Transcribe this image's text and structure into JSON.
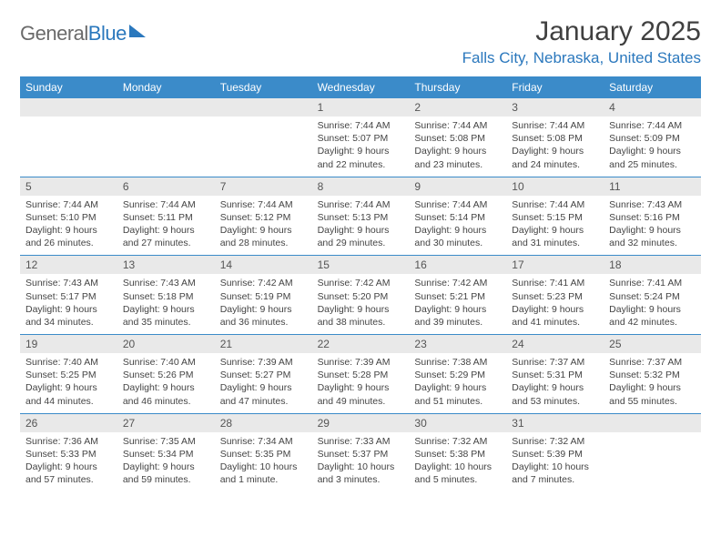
{
  "brand": {
    "part1": "General",
    "part2": "Blue"
  },
  "title": "January 2025",
  "location": "Falls City, Nebraska, United States",
  "colors": {
    "header_bg": "#3b8bc9",
    "header_text": "#ffffff",
    "daynum_bg": "#e9e9e9",
    "rule": "#3b8bc9",
    "brand_blue": "#2b78bd",
    "brand_gray": "#6a6a6a",
    "body_text": "#444444"
  },
  "weekdays": [
    "Sunday",
    "Monday",
    "Tuesday",
    "Wednesday",
    "Thursday",
    "Friday",
    "Saturday"
  ],
  "weeks": [
    [
      {
        "n": "",
        "sunrise": "",
        "sunset": "",
        "daylight": ""
      },
      {
        "n": "",
        "sunrise": "",
        "sunset": "",
        "daylight": ""
      },
      {
        "n": "",
        "sunrise": "",
        "sunset": "",
        "daylight": ""
      },
      {
        "n": "1",
        "sunrise": "Sunrise: 7:44 AM",
        "sunset": "Sunset: 5:07 PM",
        "daylight": "Daylight: 9 hours and 22 minutes."
      },
      {
        "n": "2",
        "sunrise": "Sunrise: 7:44 AM",
        "sunset": "Sunset: 5:08 PM",
        "daylight": "Daylight: 9 hours and 23 minutes."
      },
      {
        "n": "3",
        "sunrise": "Sunrise: 7:44 AM",
        "sunset": "Sunset: 5:08 PM",
        "daylight": "Daylight: 9 hours and 24 minutes."
      },
      {
        "n": "4",
        "sunrise": "Sunrise: 7:44 AM",
        "sunset": "Sunset: 5:09 PM",
        "daylight": "Daylight: 9 hours and 25 minutes."
      }
    ],
    [
      {
        "n": "5",
        "sunrise": "Sunrise: 7:44 AM",
        "sunset": "Sunset: 5:10 PM",
        "daylight": "Daylight: 9 hours and 26 minutes."
      },
      {
        "n": "6",
        "sunrise": "Sunrise: 7:44 AM",
        "sunset": "Sunset: 5:11 PM",
        "daylight": "Daylight: 9 hours and 27 minutes."
      },
      {
        "n": "7",
        "sunrise": "Sunrise: 7:44 AM",
        "sunset": "Sunset: 5:12 PM",
        "daylight": "Daylight: 9 hours and 28 minutes."
      },
      {
        "n": "8",
        "sunrise": "Sunrise: 7:44 AM",
        "sunset": "Sunset: 5:13 PM",
        "daylight": "Daylight: 9 hours and 29 minutes."
      },
      {
        "n": "9",
        "sunrise": "Sunrise: 7:44 AM",
        "sunset": "Sunset: 5:14 PM",
        "daylight": "Daylight: 9 hours and 30 minutes."
      },
      {
        "n": "10",
        "sunrise": "Sunrise: 7:44 AM",
        "sunset": "Sunset: 5:15 PM",
        "daylight": "Daylight: 9 hours and 31 minutes."
      },
      {
        "n": "11",
        "sunrise": "Sunrise: 7:43 AM",
        "sunset": "Sunset: 5:16 PM",
        "daylight": "Daylight: 9 hours and 32 minutes."
      }
    ],
    [
      {
        "n": "12",
        "sunrise": "Sunrise: 7:43 AM",
        "sunset": "Sunset: 5:17 PM",
        "daylight": "Daylight: 9 hours and 34 minutes."
      },
      {
        "n": "13",
        "sunrise": "Sunrise: 7:43 AM",
        "sunset": "Sunset: 5:18 PM",
        "daylight": "Daylight: 9 hours and 35 minutes."
      },
      {
        "n": "14",
        "sunrise": "Sunrise: 7:42 AM",
        "sunset": "Sunset: 5:19 PM",
        "daylight": "Daylight: 9 hours and 36 minutes."
      },
      {
        "n": "15",
        "sunrise": "Sunrise: 7:42 AM",
        "sunset": "Sunset: 5:20 PM",
        "daylight": "Daylight: 9 hours and 38 minutes."
      },
      {
        "n": "16",
        "sunrise": "Sunrise: 7:42 AM",
        "sunset": "Sunset: 5:21 PM",
        "daylight": "Daylight: 9 hours and 39 minutes."
      },
      {
        "n": "17",
        "sunrise": "Sunrise: 7:41 AM",
        "sunset": "Sunset: 5:23 PM",
        "daylight": "Daylight: 9 hours and 41 minutes."
      },
      {
        "n": "18",
        "sunrise": "Sunrise: 7:41 AM",
        "sunset": "Sunset: 5:24 PM",
        "daylight": "Daylight: 9 hours and 42 minutes."
      }
    ],
    [
      {
        "n": "19",
        "sunrise": "Sunrise: 7:40 AM",
        "sunset": "Sunset: 5:25 PM",
        "daylight": "Daylight: 9 hours and 44 minutes."
      },
      {
        "n": "20",
        "sunrise": "Sunrise: 7:40 AM",
        "sunset": "Sunset: 5:26 PM",
        "daylight": "Daylight: 9 hours and 46 minutes."
      },
      {
        "n": "21",
        "sunrise": "Sunrise: 7:39 AM",
        "sunset": "Sunset: 5:27 PM",
        "daylight": "Daylight: 9 hours and 47 minutes."
      },
      {
        "n": "22",
        "sunrise": "Sunrise: 7:39 AM",
        "sunset": "Sunset: 5:28 PM",
        "daylight": "Daylight: 9 hours and 49 minutes."
      },
      {
        "n": "23",
        "sunrise": "Sunrise: 7:38 AM",
        "sunset": "Sunset: 5:29 PM",
        "daylight": "Daylight: 9 hours and 51 minutes."
      },
      {
        "n": "24",
        "sunrise": "Sunrise: 7:37 AM",
        "sunset": "Sunset: 5:31 PM",
        "daylight": "Daylight: 9 hours and 53 minutes."
      },
      {
        "n": "25",
        "sunrise": "Sunrise: 7:37 AM",
        "sunset": "Sunset: 5:32 PM",
        "daylight": "Daylight: 9 hours and 55 minutes."
      }
    ],
    [
      {
        "n": "26",
        "sunrise": "Sunrise: 7:36 AM",
        "sunset": "Sunset: 5:33 PM",
        "daylight": "Daylight: 9 hours and 57 minutes."
      },
      {
        "n": "27",
        "sunrise": "Sunrise: 7:35 AM",
        "sunset": "Sunset: 5:34 PM",
        "daylight": "Daylight: 9 hours and 59 minutes."
      },
      {
        "n": "28",
        "sunrise": "Sunrise: 7:34 AM",
        "sunset": "Sunset: 5:35 PM",
        "daylight": "Daylight: 10 hours and 1 minute."
      },
      {
        "n": "29",
        "sunrise": "Sunrise: 7:33 AM",
        "sunset": "Sunset: 5:37 PM",
        "daylight": "Daylight: 10 hours and 3 minutes."
      },
      {
        "n": "30",
        "sunrise": "Sunrise: 7:32 AM",
        "sunset": "Sunset: 5:38 PM",
        "daylight": "Daylight: 10 hours and 5 minutes."
      },
      {
        "n": "31",
        "sunrise": "Sunrise: 7:32 AM",
        "sunset": "Sunset: 5:39 PM",
        "daylight": "Daylight: 10 hours and 7 minutes."
      },
      {
        "n": "",
        "sunrise": "",
        "sunset": "",
        "daylight": ""
      }
    ]
  ]
}
